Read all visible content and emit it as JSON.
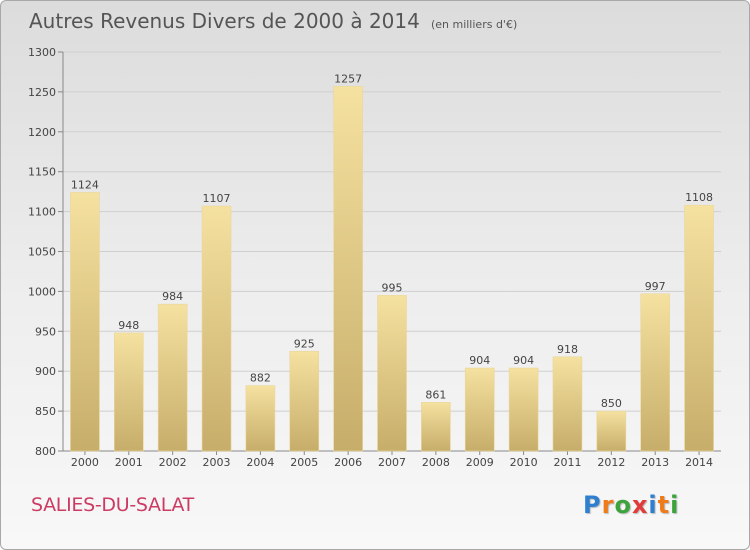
{
  "title": {
    "main": "Autres Revenus Divers de 2000 à 2014",
    "sub": "(en milliers d'€)"
  },
  "footer": {
    "town": "SALIES-DU-SALAT",
    "logo_letters": [
      "P",
      "r",
      "o",
      "x",
      "i",
      "t",
      "i"
    ],
    "logo_colors": [
      "#2e7fd0",
      "#ef7b1a",
      "#3da33d",
      "#e23b3b",
      "#2e7fd0",
      "#ef7b1a",
      "#3da33d"
    ]
  },
  "chart_data": {
    "type": "bar",
    "title": "Autres Revenus Divers de 2000 à 2014",
    "subtitle": "(en milliers d'€)",
    "categories": [
      "2000",
      "2001",
      "2002",
      "2003",
      "2004",
      "2005",
      "2006",
      "2007",
      "2008",
      "2009",
      "2010",
      "2011",
      "2012",
      "2013",
      "2014"
    ],
    "values": [
      1124,
      948,
      984,
      1107,
      882,
      925,
      1257,
      995,
      861,
      904,
      904,
      918,
      850,
      997,
      1108
    ],
    "ylim": [
      800,
      1300
    ],
    "yticks": [
      800,
      850,
      900,
      950,
      1000,
      1050,
      1100,
      1150,
      1200,
      1250,
      1300
    ],
    "grid": true,
    "bar_color_light": "#f5e1a0",
    "bar_color_dark": "#c7ad6a"
  }
}
